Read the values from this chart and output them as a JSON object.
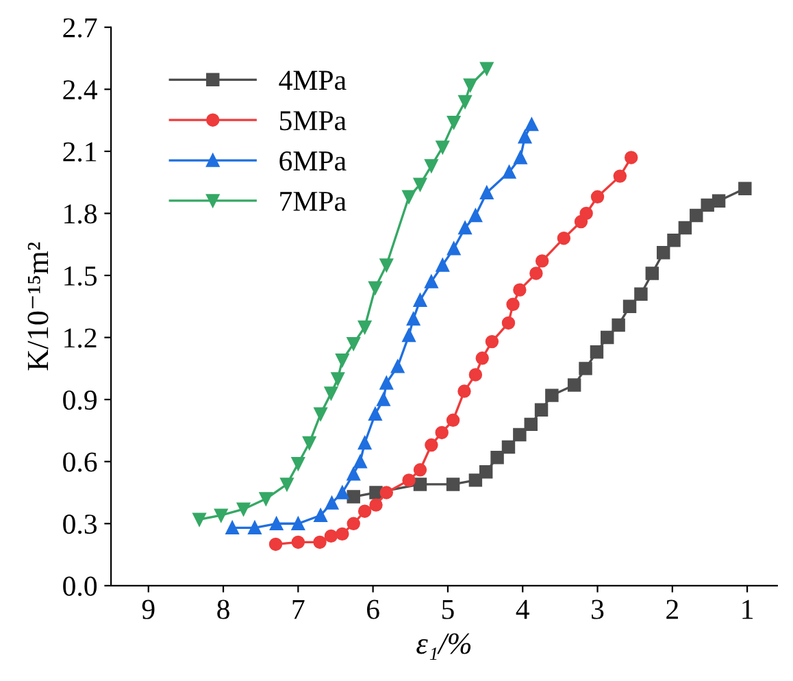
{
  "chart_data": {
    "type": "line",
    "xlabel": "ε₁/%",
    "ylabel": "K/10⁻¹⁵m²",
    "xlim": [
      9.5,
      0.6
    ],
    "xticks": [
      9,
      8,
      7,
      6,
      5,
      4,
      3,
      2,
      1
    ],
    "ylim": [
      0,
      2.7
    ],
    "yticks": [
      {
        "value": 0,
        "label": "0.0"
      },
      0.3,
      0.6,
      0.9,
      1.2,
      1.5,
      1.8,
      2.1,
      2.4,
      2.7
    ],
    "grid": false,
    "legend": "top left",
    "line_style": "solid",
    "series": [
      {
        "name": "4MPa",
        "color": "#4d4d4d",
        "marker": "square",
        "x": [
          6.26,
          5.96,
          5.37,
          4.93,
          4.63,
          4.49,
          4.34,
          4.19,
          4.04,
          3.89,
          3.75,
          3.61,
          3.31,
          3.16,
          3.01,
          2.87,
          2.72,
          2.57,
          2.42,
          2.27,
          2.12,
          1.98,
          1.83,
          1.68,
          1.53,
          1.38,
          1.03
        ],
        "values": [
          0.43,
          0.45,
          0.49,
          0.49,
          0.51,
          0.55,
          0.62,
          0.67,
          0.73,
          0.78,
          0.85,
          0.92,
          0.97,
          1.05,
          1.13,
          1.2,
          1.26,
          1.35,
          1.41,
          1.51,
          1.61,
          1.67,
          1.73,
          1.79,
          1.84,
          1.86,
          1.92
        ]
      },
      {
        "name": "5MPa",
        "color": "#ee3b3b",
        "marker": "circle",
        "x": [
          7.3,
          7.0,
          6.71,
          6.56,
          6.41,
          6.26,
          6.11,
          5.96,
          5.82,
          5.52,
          5.37,
          5.22,
          5.08,
          4.93,
          4.78,
          4.63,
          4.54,
          4.41,
          4.19,
          4.13,
          4.04,
          3.82,
          3.74,
          3.45,
          3.22,
          3.15,
          3.0,
          2.7,
          2.55
        ],
        "values": [
          0.2,
          0.21,
          0.21,
          0.24,
          0.25,
          0.3,
          0.36,
          0.39,
          0.45,
          0.51,
          0.56,
          0.68,
          0.74,
          0.8,
          0.94,
          1.02,
          1.1,
          1.18,
          1.27,
          1.36,
          1.43,
          1.51,
          1.57,
          1.68,
          1.76,
          1.8,
          1.88,
          1.98,
          2.07
        ]
      },
      {
        "name": "6MPa",
        "color": "#1f6fe0",
        "marker": "triangle",
        "x": [
          7.88,
          7.58,
          7.29,
          7.0,
          6.7,
          6.55,
          6.41,
          6.26,
          6.17,
          6.11,
          5.97,
          5.86,
          5.82,
          5.67,
          5.52,
          5.46,
          5.37,
          5.22,
          5.07,
          4.92,
          4.77,
          4.63,
          4.48,
          4.18,
          4.03,
          3.97,
          3.88
        ],
        "values": [
          0.28,
          0.28,
          0.3,
          0.3,
          0.34,
          0.4,
          0.45,
          0.54,
          0.6,
          0.69,
          0.83,
          0.9,
          0.98,
          1.06,
          1.21,
          1.29,
          1.38,
          1.47,
          1.55,
          1.63,
          1.73,
          1.79,
          1.9,
          2.0,
          2.07,
          2.17,
          2.23
        ]
      },
      {
        "name": "7MPa",
        "color": "#35a865",
        "marker": "triangle-down",
        "x": [
          8.32,
          8.03,
          7.73,
          7.43,
          7.15,
          7.0,
          6.85,
          6.7,
          6.56,
          6.47,
          6.41,
          6.26,
          6.11,
          5.97,
          5.82,
          5.52,
          5.37,
          5.22,
          5.07,
          4.92,
          4.77,
          4.7,
          4.48
        ],
        "values": [
          0.32,
          0.34,
          0.37,
          0.42,
          0.49,
          0.59,
          0.69,
          0.83,
          0.93,
          1.0,
          1.09,
          1.17,
          1.25,
          1.44,
          1.55,
          1.88,
          1.94,
          2.03,
          2.12,
          2.24,
          2.34,
          2.42,
          2.5
        ]
      }
    ]
  }
}
